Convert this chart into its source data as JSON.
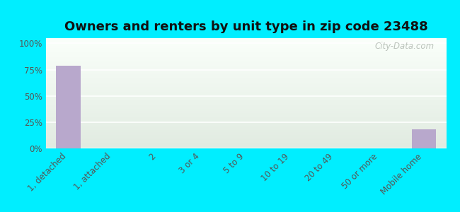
{
  "title": "Owners and renters by unit type in zip code 23488",
  "categories": [
    "1, detached",
    "1, attached",
    "2",
    "3 or 4",
    "5 to 9",
    "10 to 19",
    "20 to 49",
    "50 or more",
    "Mobile home"
  ],
  "values": [
    79,
    0,
    0,
    0,
    0,
    0,
    0,
    0,
    18
  ],
  "bar_color": "#b8a8cc",
  "bg_outer": "#00eeff",
  "yticks": [
    0,
    25,
    50,
    75,
    100
  ],
  "ylim": [
    0,
    105
  ],
  "title_fontsize": 13,
  "tick_label_fontsize": 8.5,
  "watermark": "City-Data.com"
}
